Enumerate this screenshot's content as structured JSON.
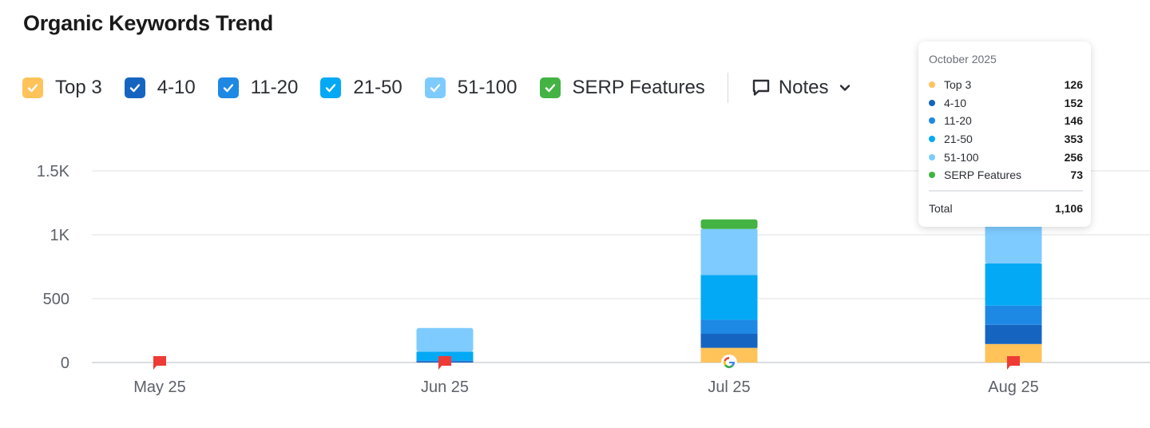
{
  "page": {
    "title": "Organic Keywords Trend"
  },
  "legend": {
    "items": [
      {
        "label": "Top 3",
        "color": "#ffc35a",
        "icon": "checkbox-checked-icon"
      },
      {
        "label": "4-10",
        "color": "#1565c0",
        "icon": "checkbox-checked-icon"
      },
      {
        "label": "11-20",
        "color": "#1e88e5",
        "icon": "checkbox-checked-icon"
      },
      {
        "label": "21-50",
        "color": "#03a9f4",
        "icon": "checkbox-checked-icon"
      },
      {
        "label": "51-100",
        "color": "#7ecbff",
        "icon": "checkbox-checked-icon"
      },
      {
        "label": "SERP Features",
        "color": "#43b344",
        "icon": "checkbox-checked-icon"
      }
    ],
    "notes_label": "Notes",
    "notes_icon": "comment-icon",
    "notes_dropdown_icon": "chevron-down-icon"
  },
  "tooltip": {
    "title": "October 2025",
    "rows": [
      {
        "name": "Top 3",
        "value": "126",
        "color": "#ffc35a"
      },
      {
        "name": "4-10",
        "value": "152",
        "color": "#1565c0"
      },
      {
        "name": "11-20",
        "value": "146",
        "color": "#1e88e5"
      },
      {
        "name": "21-50",
        "value": "353",
        "color": "#03a9f4"
      },
      {
        "name": "51-100",
        "value": "256",
        "color": "#7ecbff"
      },
      {
        "name": "SERP Features",
        "value": "73",
        "color": "#43b344"
      }
    ],
    "total_label": "Total",
    "total_value": "1,106"
  },
  "chart_data": {
    "type": "bar",
    "stacked": true,
    "categories": [
      "May 25",
      "Jun 25",
      "Jul 25",
      "Aug 25"
    ],
    "series": [
      {
        "name": "Top 3",
        "color": "#ffc35a",
        "values": [
          0,
          0,
          115,
          145
        ]
      },
      {
        "name": "4-10",
        "color": "#1565c0",
        "values": [
          0,
          10,
          110,
          150
        ]
      },
      {
        "name": "11-20",
        "color": "#1e88e5",
        "values": [
          0,
          5,
          110,
          150
        ]
      },
      {
        "name": "21-50",
        "color": "#03a9f4",
        "values": [
          0,
          70,
          350,
          330
        ]
      },
      {
        "name": "51-100",
        "color": "#7ecbff",
        "values": [
          0,
          185,
          360,
          310
        ]
      },
      {
        "name": "SERP Features",
        "color": "#43b344",
        "values": [
          0,
          0,
          75,
          0
        ]
      }
    ],
    "y_ticks": [
      "0",
      "500",
      "1K",
      "1.5K"
    ],
    "ylim": [
      0,
      1500
    ],
    "grid": true,
    "markers": [
      {
        "category": "May 25",
        "kind": "note-flag",
        "color": "#ef3b36"
      },
      {
        "category": "Jun 25",
        "kind": "note-flag",
        "color": "#ef3b36"
      },
      {
        "category": "Jul 25",
        "kind": "google-icon"
      },
      {
        "category": "Aug 25",
        "kind": "note-flag",
        "color": "#ef3b36"
      }
    ]
  }
}
